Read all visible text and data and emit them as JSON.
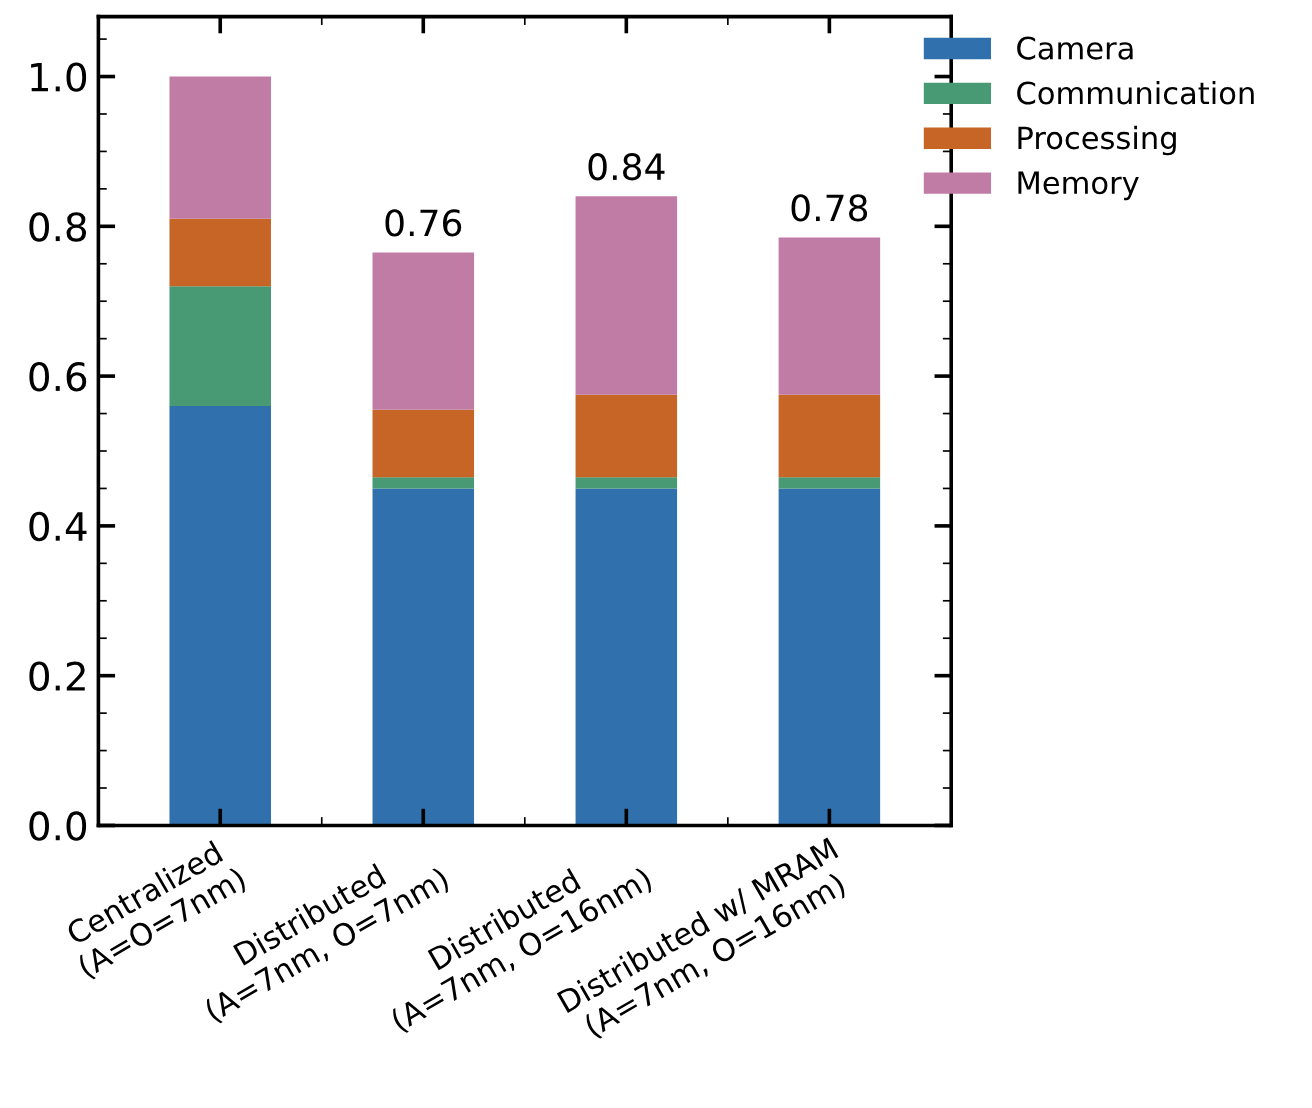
{
  "chart_data": {
    "type": "bar",
    "stacked": true,
    "categories": [
      "Centralized\n(A=O=7nm)",
      "Distributed\n(A=7nm, O=7nm)",
      "Distributed\n(A=7nm, O=16nm)",
      "Distributed w/ MRAM\n(A=7nm, O=16nm)"
    ],
    "series": [
      {
        "name": "Camera",
        "color": "#3070ad",
        "values": [
          0.56,
          0.45,
          0.45,
          0.45
        ]
      },
      {
        "name": "Communication",
        "color": "#479a74",
        "values": [
          0.16,
          0.015,
          0.015,
          0.015
        ]
      },
      {
        "name": "Processing",
        "color": "#c66526",
        "values": [
          0.09,
          0.09,
          0.11,
          0.11
        ]
      },
      {
        "name": "Memory",
        "color": "#c17ca6",
        "values": [
          0.19,
          0.21,
          0.265,
          0.21
        ]
      }
    ],
    "totals": [
      null,
      "0.76",
      "0.84",
      "0.78"
    ],
    "ylim": [
      0,
      1.08
    ],
    "yticks": [
      {
        "value": 0,
        "label": "0.0"
      },
      0.2,
      0.4,
      0.6,
      0.8,
      {
        "value": 1,
        "label": "1.0"
      }
    ],
    "legend": "top right",
    "grid": false
  }
}
